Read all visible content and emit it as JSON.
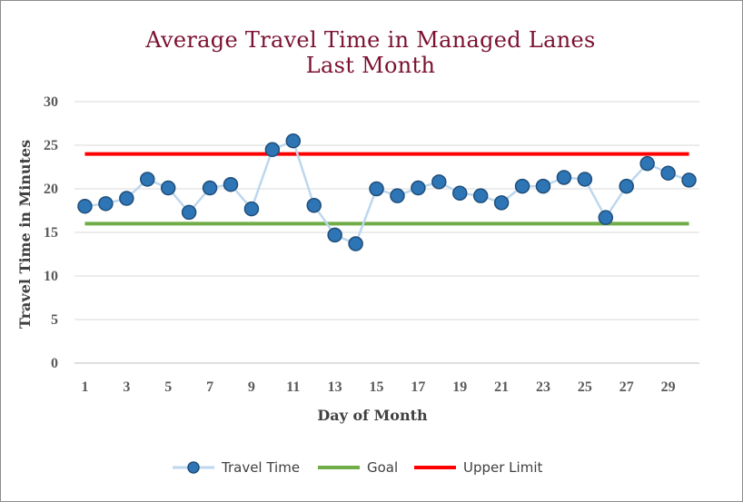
{
  "chart_data": {
    "type": "line",
    "title_line1": "Average Travel Time in Managed Lanes",
    "title_line2": "Last Month",
    "xlabel": "Day of Month",
    "ylabel": "Travel Time in Minutes",
    "x": [
      1,
      2,
      3,
      4,
      5,
      6,
      7,
      8,
      9,
      10,
      11,
      12,
      13,
      14,
      15,
      16,
      17,
      18,
      19,
      20,
      21,
      22,
      23,
      24,
      25,
      26,
      27,
      28,
      29,
      30
    ],
    "x_tick_labels": [
      "1",
      "3",
      "5",
      "7",
      "9",
      "11",
      "13",
      "15",
      "17",
      "19",
      "21",
      "23",
      "25",
      "27",
      "29"
    ],
    "ylim": [
      0,
      30
    ],
    "y_ticks": [
      0,
      5,
      10,
      15,
      20,
      25,
      30
    ],
    "grid": true,
    "legend_position": "bottom",
    "series": [
      {
        "name": "Travel Time",
        "color": "#2e75b6",
        "line_color": "#bdd7ee",
        "marker": "circle",
        "values": [
          18.0,
          18.3,
          18.9,
          21.1,
          20.1,
          17.3,
          20.1,
          20.5,
          17.7,
          24.5,
          25.5,
          18.1,
          14.7,
          13.7,
          20.0,
          19.2,
          20.1,
          20.8,
          19.5,
          19.2,
          18.4,
          20.3,
          20.3,
          21.3,
          21.1,
          16.7,
          20.3,
          22.9,
          21.8,
          21.0
        ]
      },
      {
        "name": "Goal",
        "color": "#70ad47",
        "values": [
          16,
          16,
          16,
          16,
          16,
          16,
          16,
          16,
          16,
          16,
          16,
          16,
          16,
          16,
          16,
          16,
          16,
          16,
          16,
          16,
          16,
          16,
          16,
          16,
          16,
          16,
          16,
          16,
          16,
          16
        ]
      },
      {
        "name": "Upper Limit",
        "color": "#ff0000",
        "values": [
          24,
          24,
          24,
          24,
          24,
          24,
          24,
          24,
          24,
          24,
          24,
          24,
          24,
          24,
          24,
          24,
          24,
          24,
          24,
          24,
          24,
          24,
          24,
          24,
          24,
          24,
          24,
          24,
          24,
          24
        ]
      }
    ]
  }
}
